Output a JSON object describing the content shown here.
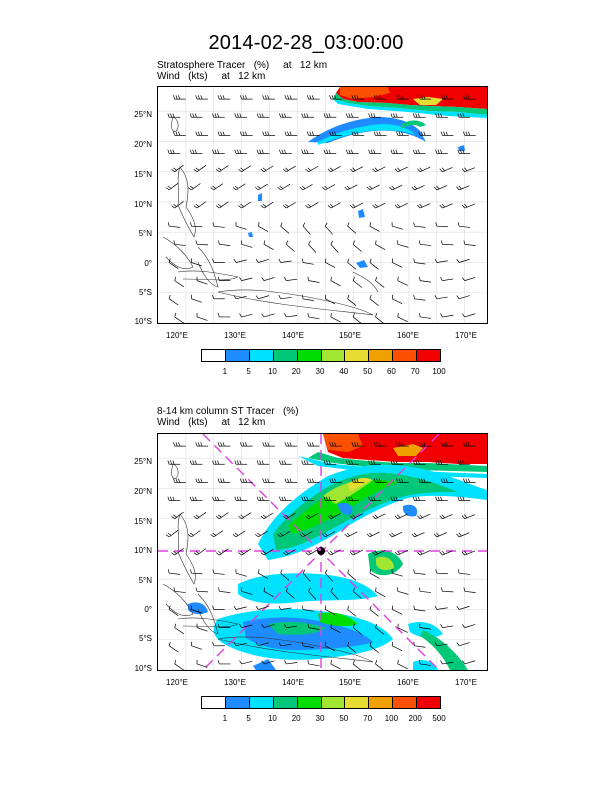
{
  "title": "2014-02-28_03:00:00",
  "panels": [
    {
      "title_line1": "Stratosphere Tracer   (%)     at   12 km",
      "title_line2": "Wind   (kts)     at   12 km",
      "lat_labels": [
        "25°N",
        "20°N",
        "15°N",
        "10°N",
        "5°N",
        "0°",
        "5°S",
        "10°S"
      ],
      "lon_labels": [
        "120°E",
        "130°E",
        "140°E",
        "150°E",
        "160°E",
        "170°E"
      ],
      "colorbar_labels": [
        "1",
        "5",
        "10",
        "20",
        "30",
        "40",
        "50",
        "60",
        "70",
        "100"
      ],
      "colorbar_colors": [
        "#ffffff",
        "#1e8cff",
        "#00e0ff",
        "#00c878",
        "#00dc00",
        "#a0e632",
        "#e6dc32",
        "#f0a000",
        "#fa5000",
        "#f00000"
      ]
    },
    {
      "title_line1": "8-14 km column ST Tracer   (%)",
      "title_line2": "Wind   (kts)     at   12 km",
      "lat_labels": [
        "25°N",
        "20°N",
        "15°N",
        "10°N",
        "5°N",
        "0°",
        "5°S",
        "10°S"
      ],
      "lon_labels": [
        "120°E",
        "130°E",
        "140°E",
        "150°E",
        "160°E",
        "170°E"
      ],
      "colorbar_labels": [
        "1",
        "5",
        "10",
        "20",
        "30",
        "50",
        "70",
        "100",
        "200",
        "500"
      ],
      "colorbar_colors": [
        "#ffffff",
        "#1e8cff",
        "#00e0ff",
        "#00c878",
        "#00dc00",
        "#a0e632",
        "#e6dc32",
        "#f0a000",
        "#fa5000",
        "#f00000"
      ]
    }
  ],
  "map_extent": {
    "lon_min": 115,
    "lon_max": 174,
    "lat_min": -10,
    "lat_max": 29
  },
  "cross_marker_colors": {
    "dashed_line": "#e040e0",
    "marker": "#000000"
  }
}
